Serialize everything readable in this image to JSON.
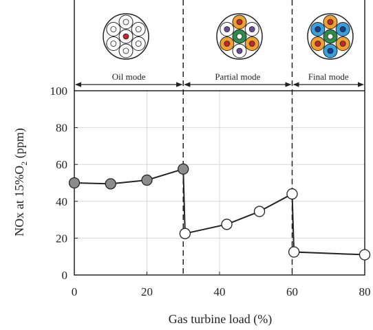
{
  "chart_data": {
    "type": "line",
    "x_label": "Gas turbine load (%)",
    "y_label": {
      "text": "NOx at 15%O",
      "sub": "2",
      "tail": " (ppm)"
    },
    "x": [
      0,
      10,
      20,
      30,
      30.5,
      42,
      51,
      60,
      60.5,
      80
    ],
    "values": [
      50,
      49.5,
      51.5,
      57.5,
      22.5,
      27.5,
      34.5,
      44,
      12.5,
      11
    ],
    "point_colors": [
      "#8c8c8c",
      "#8c8c8c",
      "#8c8c8c",
      "#8c8c8c",
      "#ffffff",
      "#ffffff",
      "#ffffff",
      "#ffffff",
      "#ffffff",
      "#ffffff"
    ],
    "color": "#222222",
    "xlim": [
      0,
      80
    ],
    "xticks": [
      0,
      20,
      40,
      60,
      80
    ],
    "ylim": [
      0,
      100
    ],
    "yticks": [
      0,
      20,
      40,
      60,
      80,
      100
    ],
    "grid": true,
    "dividers": [
      30,
      60
    ],
    "regions": [
      {
        "label": "Oil mode",
        "range": [
          0,
          30
        ]
      },
      {
        "label": "Partial mode",
        "range": [
          30,
          60
        ]
      },
      {
        "label": "Final mode",
        "range": [
          60,
          80
        ]
      }
    ]
  }
}
